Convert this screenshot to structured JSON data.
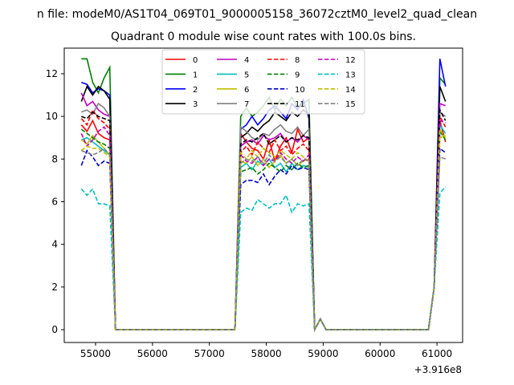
{
  "chart_data": {
    "type": "line",
    "suptitle": "n file: modeM0/AS1T04_069T01_9000005158_36072cztM0_level2_quad_clean",
    "title": "Quadrant 0 module wise count rates with 100.0s bins.",
    "xlabel": "",
    "ylabel": "",
    "x_offset_label": "+3.916e8",
    "xlim": [
      54450,
      61450
    ],
    "ylim": [
      -0.6,
      13.2
    ],
    "xticks": [
      55000,
      56000,
      57000,
      58000,
      59000,
      60000,
      61000
    ],
    "xtick_labels": [
      "55000",
      "56000",
      "57000",
      "58000",
      "59000",
      "60000",
      "61000"
    ],
    "yticks": [
      0,
      2,
      4,
      6,
      8,
      10,
      12
    ],
    "ytick_labels": [
      "0",
      "2",
      "4",
      "6",
      "8",
      "10",
      "12"
    ],
    "legend_position": "top-center",
    "x": [
      54750,
      54850,
      54950,
      55050,
      55150,
      55250,
      55350,
      55450,
      55550,
      55650,
      55750,
      55850,
      55950,
      56050,
      56150,
      56250,
      56350,
      56450,
      56550,
      56650,
      56750,
      56850,
      56950,
      57050,
      57150,
      57250,
      57350,
      57450,
      57550,
      57650,
      57750,
      57850,
      57950,
      58050,
      58150,
      58250,
      58350,
      58450,
      58550,
      58650,
      58750,
      58850,
      58950,
      59050,
      59150,
      59250,
      59350,
      59450,
      59550,
      59650,
      59750,
      59850,
      59950,
      60050,
      60150,
      60250,
      60350,
      60450,
      60550,
      60650,
      60750,
      60850,
      60950,
      61050,
      61150
    ],
    "series": [
      {
        "name": "0",
        "color": "#ff0000",
        "dash": "solid",
        "active": [
          9.6,
          9.3,
          9.8,
          9.2,
          9.0,
          8.9
        ],
        "mid": [
          9.2,
          8.8,
          8.5,
          8.4,
          8.0,
          8.9,
          7.9,
          8.6,
          9.0,
          8.3,
          9.4,
          8.8,
          9.0
        ],
        "end": [
          9.8,
          8.8
        ]
      },
      {
        "name": "1",
        "color": "#008000",
        "dash": "solid",
        "active": [
          12.7,
          12.7,
          11.6,
          11.1,
          11.8,
          12.3
        ],
        "mid": [
          10.0,
          10.4,
          10.0,
          10.2,
          10.5,
          10.9,
          10.3,
          10.8,
          10.5,
          10.9,
          10.4,
          10.6,
          10.8
        ],
        "end": [
          11.8,
          11.5
        ]
      },
      {
        "name": "2",
        "color": "#0000ff",
        "dash": "solid",
        "active": [
          11.6,
          11.5,
          11.1,
          11.3,
          11.2,
          11.0
        ],
        "mid": [
          9.4,
          9.6,
          10.0,
          9.6,
          9.9,
          10.3,
          10.5,
          10.2,
          9.9,
          10.6,
          10.3,
          10.8,
          9.9
        ],
        "end": [
          12.7,
          11.4
        ]
      },
      {
        "name": "3",
        "color": "#000000",
        "dash": "solid",
        "active": [
          10.7,
          11.4,
          11.0,
          11.4,
          11.2,
          10.8
        ],
        "mid": [
          9.0,
          9.2,
          9.5,
          9.3,
          9.6,
          9.8,
          10.2,
          10.0,
          9.8,
          10.2,
          10.0,
          10.3,
          10.1
        ],
        "end": [
          11.4,
          10.7
        ]
      },
      {
        "name": "4",
        "color": "#bf00bf",
        "dash": "solid",
        "active": [
          11.1,
          10.5,
          10.7,
          10.3,
          10.1,
          10.0
        ],
        "mid": [
          8.6,
          8.8,
          8.9,
          8.7,
          9.1,
          8.9,
          9.0,
          9.2,
          8.8,
          9.0,
          8.8,
          9.1,
          8.9
        ],
        "end": [
          10.6,
          10.5
        ]
      },
      {
        "name": "5",
        "color": "#00bfbf",
        "dash": "solid",
        "active": [
          8.9,
          9.0,
          8.8,
          8.6,
          8.4,
          8.2
        ],
        "mid": [
          7.6,
          7.8,
          7.5,
          7.9,
          7.7,
          8.0,
          7.6,
          7.8,
          7.4,
          7.8,
          7.5,
          7.7,
          7.6
        ],
        "end": [
          9.6,
          9.2
        ]
      },
      {
        "name": "6",
        "color": "#bfbf00",
        "dash": "solid",
        "active": [
          8.9,
          8.7,
          9.1,
          8.8,
          8.5,
          8.2
        ],
        "mid": [
          7.9,
          7.8,
          8.1,
          7.7,
          8.0,
          7.6,
          7.9,
          8.2,
          7.8,
          8.0,
          7.7,
          7.9,
          8.0
        ],
        "end": [
          9.0,
          9.1
        ]
      },
      {
        "name": "7",
        "color": "#808080",
        "dash": "solid",
        "active": [
          10.2,
          10.3,
          10.1,
          10.6,
          10.4,
          10.0
        ],
        "mid": [
          9.5,
          9.3,
          9.0,
          8.9,
          9.2,
          9.1,
          9.4,
          9.6,
          9.3,
          9.2,
          9.5,
          9.1,
          9.4
        ],
        "end": [
          10.2,
          10.0
        ]
      },
      {
        "name": "8",
        "color": "#ff0000",
        "dash": "dashed",
        "active": [
          9.9,
          9.6,
          10.3,
          9.9,
          9.7,
          9.4
        ],
        "mid": [
          8.3,
          8.6,
          8.2,
          8.8,
          8.5,
          8.3,
          8.9,
          8.4,
          8.6,
          8.2,
          8.5,
          8.7,
          8.4
        ],
        "end": [
          10.0,
          9.5
        ]
      },
      {
        "name": "9",
        "color": "#008000",
        "dash": "dashed",
        "active": [
          9.4,
          9.2,
          9.0,
          8.8,
          8.7,
          8.5
        ],
        "mid": [
          7.4,
          7.5,
          7.6,
          7.3,
          7.5,
          7.8,
          7.6,
          7.4,
          7.7,
          7.5,
          7.8,
          7.6,
          7.7
        ],
        "end": [
          9.3,
          8.9
        ]
      },
      {
        "name": "10",
        "color": "#0000bf",
        "dash": "dashed",
        "active": [
          7.7,
          8.4,
          8.1,
          7.7,
          7.9,
          7.8
        ],
        "mid": [
          6.8,
          7.0,
          7.0,
          6.9,
          7.3,
          6.8,
          7.2,
          7.5,
          7.3,
          7.7,
          7.5,
          7.6,
          7.5
        ],
        "end": [
          8.5,
          8.3
        ]
      },
      {
        "name": "11",
        "color": "#000000",
        "dash": "dashed",
        "active": [
          10.0,
          9.9,
          10.2,
          10.0,
          9.9,
          9.8
        ],
        "mid": [
          8.7,
          8.9,
          8.8,
          9.0,
          9.2,
          8.7,
          8.9,
          9.1,
          8.8,
          9.0,
          8.9,
          9.1,
          9.0
        ],
        "end": [
          10.3,
          9.8
        ]
      },
      {
        "name": "12",
        "color": "#bf00bf",
        "dash": "dashed",
        "active": [
          9.2,
          8.6,
          8.9,
          9.3,
          9.5,
          9.1
        ],
        "mid": [
          8.2,
          7.9,
          7.8,
          8.1,
          7.7,
          8.0,
          7.9,
          8.3,
          8.0,
          7.8,
          8.1,
          7.9,
          8.2
        ],
        "end": [
          9.8,
          9.7
        ]
      },
      {
        "name": "13",
        "color": "#00bfbf",
        "dash": "dashed",
        "active": [
          6.6,
          6.3,
          6.6,
          5.9,
          5.9,
          5.8
        ],
        "mid": [
          5.5,
          5.7,
          5.6,
          6.1,
          5.9,
          5.7,
          5.9,
          5.9,
          6.3,
          5.5,
          5.9,
          5.8,
          5.9
        ],
        "end": [
          6.4,
          6.7
        ]
      },
      {
        "name": "14",
        "color": "#bfbf00",
        "dash": "dashed",
        "active": [
          8.4,
          8.6,
          8.5,
          8.5,
          8.3,
          8.1
        ],
        "mid": [
          8.3,
          8.0,
          8.4,
          8.1,
          8.5,
          8.3,
          8.1,
          8.4,
          8.2,
          8.0,
          8.3,
          8.1,
          7.9
        ],
        "end": [
          9.4,
          9.0
        ]
      },
      {
        "name": "15",
        "color": "#808080",
        "dash": "dashed",
        "active": [
          8.4,
          8.3,
          8.2,
          8.3,
          8.5,
          8.2
        ],
        "mid": [
          7.8,
          8.0,
          7.9,
          8.1,
          7.8,
          8.2,
          7.9,
          8.1,
          7.8,
          8.0,
          7.7,
          8.0,
          7.9
        ],
        "end": [
          8.1,
          8.0
        ]
      }
    ],
    "segments": {
      "active_start_index": 0,
      "zero_start_index": 7,
      "mid_start_index": 28,
      "zero2_start_index": 43,
      "end_start_index": 63
    }
  }
}
